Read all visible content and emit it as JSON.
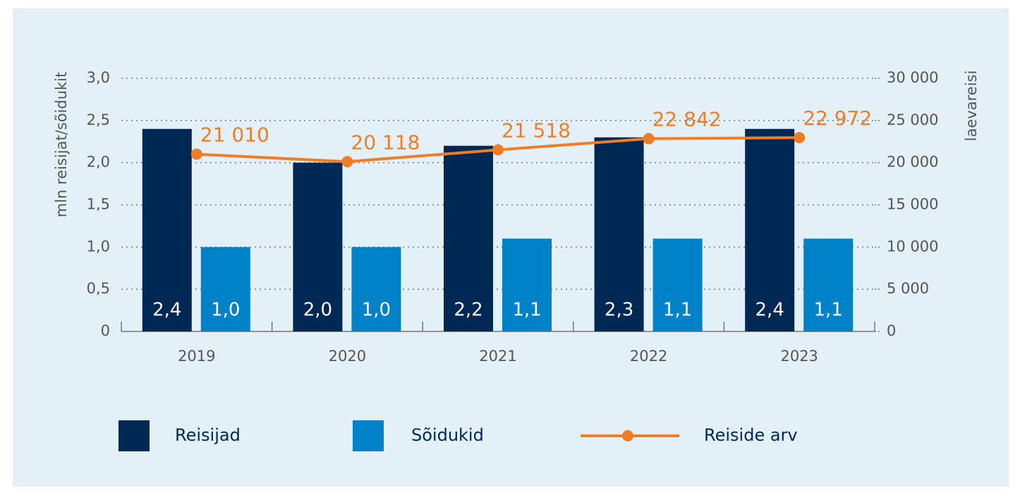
{
  "chart_data": {
    "type": "bar",
    "categories": [
      "2019",
      "2020",
      "2021",
      "2022",
      "2023"
    ],
    "y_label": "mln reisijat/sõidukit",
    "y2_label": "laevareisi",
    "ylim": [
      0,
      3.0
    ],
    "yticks": [
      0,
      {
        "value": 0.5,
        "label": "0,5"
      },
      {
        "value": 1.0,
        "label": "1,0"
      },
      {
        "value": 1.5,
        "label": "1,5"
      },
      {
        "value": 2.0,
        "label": "2,0"
      },
      {
        "value": 2.5,
        "label": "2,5"
      },
      {
        "value": 3.0,
        "label": "3,0"
      }
    ],
    "y2lim": [
      0,
      30000
    ],
    "y2ticks": [
      0,
      {
        "value": 5000,
        "label": "5 000"
      },
      {
        "value": 10000,
        "label": "10 000"
      },
      {
        "value": 15000,
        "label": "15 000"
      },
      {
        "value": 20000,
        "label": "20 000"
      },
      {
        "value": 25000,
        "label": "25 000"
      },
      {
        "value": 30000,
        "label": "30 000"
      }
    ],
    "grid": true,
    "legend": "bottom",
    "series": [
      {
        "name": "Reisijad",
        "type": "bar",
        "color": "#002855",
        "values": [
          2.4,
          2.0,
          2.2,
          2.3,
          2.4
        ],
        "value_labels": [
          "2,4",
          "2,0",
          "2,2",
          "2,3",
          "2,4"
        ]
      },
      {
        "name": "Sõidukid",
        "type": "bar",
        "color": "#0082c8",
        "values": [
          1.0,
          1.0,
          1.1,
          1.1,
          1.1
        ],
        "value_labels": [
          "1,0",
          "1,0",
          "1,1",
          "1,1",
          "1,1"
        ]
      },
      {
        "name": "Reiside arv",
        "type": "line",
        "axis": "y2",
        "color": "#f07d23",
        "values": [
          21010,
          20118,
          21518,
          22842,
          22972
        ],
        "value_labels": [
          "21 010",
          "20 118",
          "21 518",
          "22 842",
          "22 972"
        ]
      }
    ]
  }
}
